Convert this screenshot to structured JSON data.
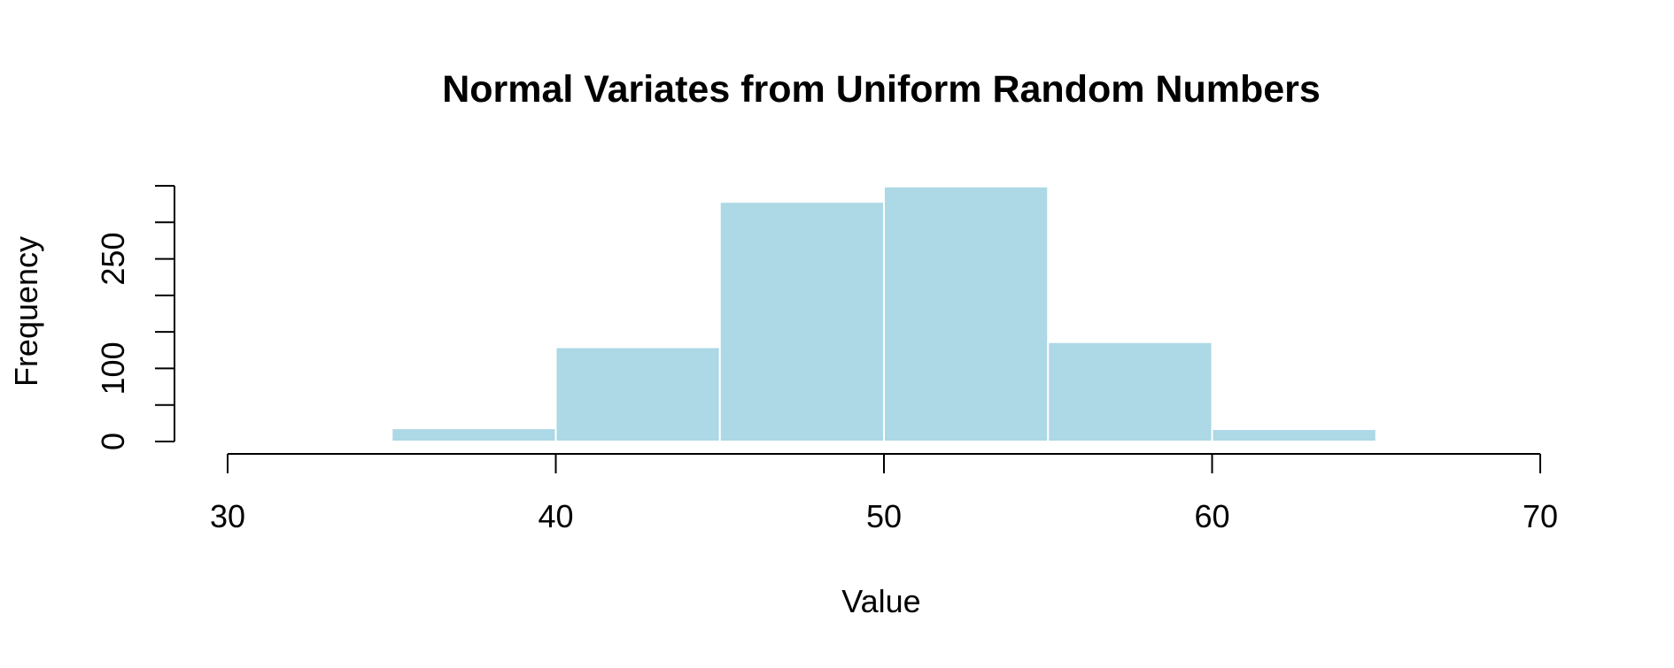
{
  "chart_data": {
    "type": "bar",
    "title": "Normal Variates from Uniform Random Numbers",
    "xlabel": "Value",
    "ylabel": "Frequency",
    "bins": [
      {
        "from": 35,
        "to": 40,
        "value": 18
      },
      {
        "from": 40,
        "to": 45,
        "value": 129
      },
      {
        "from": 45,
        "to": 50,
        "value": 328
      },
      {
        "from": 50,
        "to": 55,
        "value": 349
      },
      {
        "from": 55,
        "to": 60,
        "value": 136
      },
      {
        "from": 60,
        "to": 65,
        "value": 17
      }
    ],
    "xlim": [
      30,
      70
    ],
    "ylim": [
      0,
      350
    ],
    "x_ticks": [
      30,
      40,
      50,
      60,
      70
    ],
    "x_tick_labels": [
      "30",
      "40",
      "50",
      "60",
      "70"
    ],
    "y_ticks": [
      0,
      50,
      100,
      150,
      200,
      250,
      300,
      350
    ],
    "y_tick_labels": [
      "0",
      "",
      "100",
      "",
      "",
      "250",
      "",
      ""
    ],
    "bar_color": "#add8e6",
    "grid": false,
    "legend": "none"
  }
}
